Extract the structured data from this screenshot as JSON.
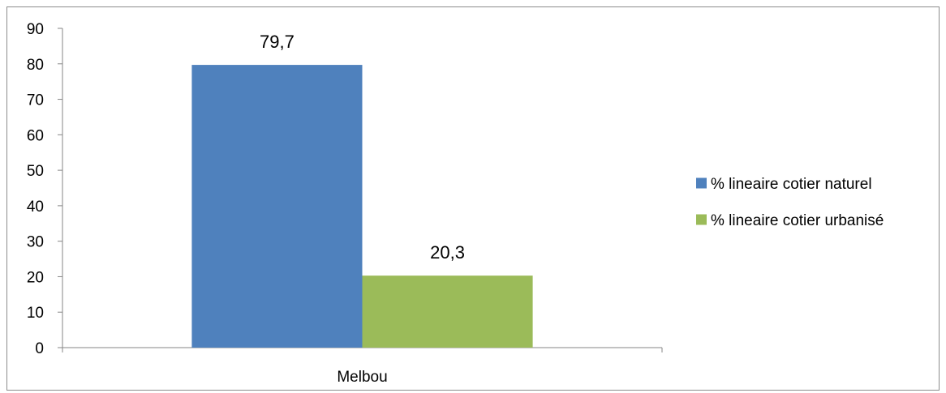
{
  "chart_data": {
    "type": "bar",
    "categories": [
      "Melbou"
    ],
    "series": [
      {
        "name": "% lineaire cotier naturel",
        "values": [
          79.7
        ],
        "label": "79,7",
        "color": "#4F81BD"
      },
      {
        "name": "% lineaire cotier urbanisé",
        "values": [
          20.3
        ],
        "label": "20,3",
        "color": "#9BBB59"
      }
    ],
    "ylim": [
      0,
      90
    ],
    "yticks": [
      0,
      10,
      20,
      30,
      40,
      50,
      60,
      70,
      80,
      90
    ],
    "title": "",
    "xlabel": "",
    "ylabel": "",
    "grid": false,
    "legend": "right"
  }
}
